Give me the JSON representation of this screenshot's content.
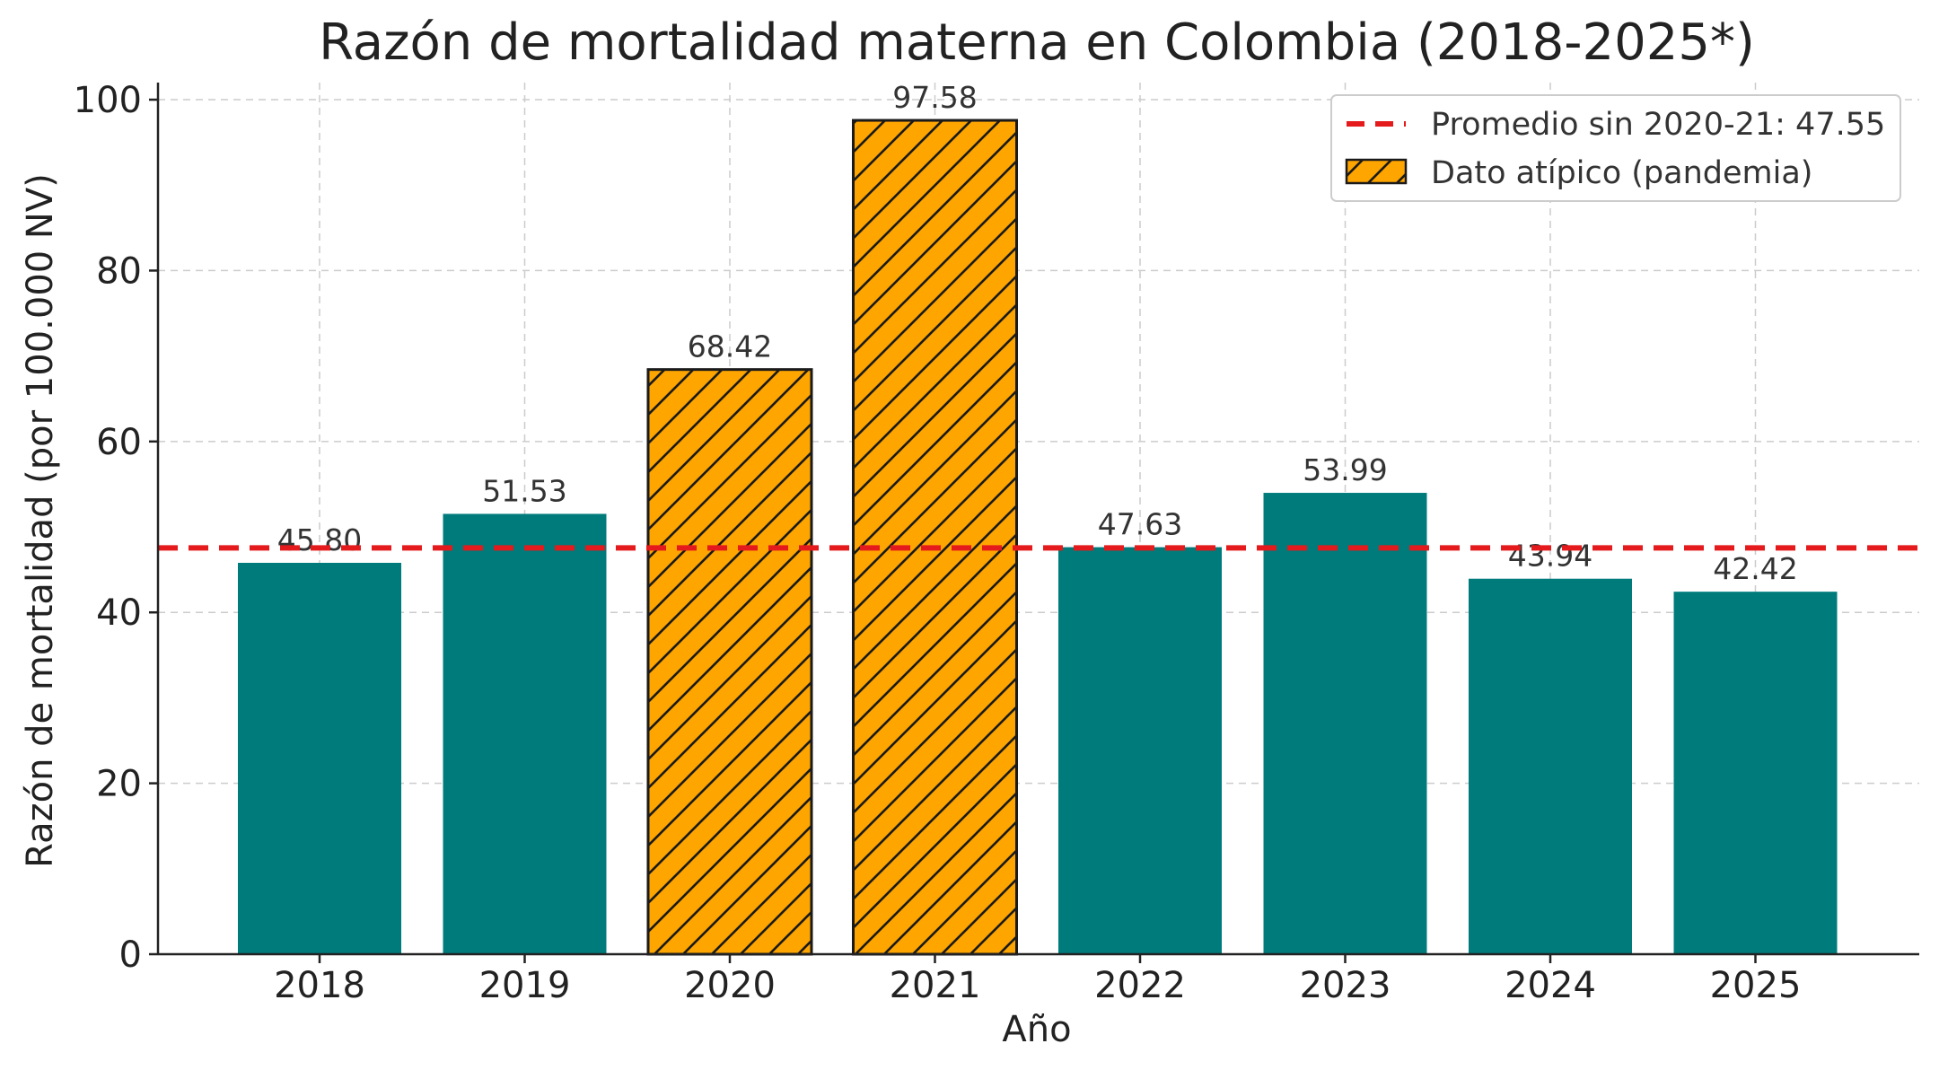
{
  "chart_data": {
    "type": "bar",
    "title": "Razón de mortalidad materna en Colombia (2018-2025*)",
    "xlabel": "Año",
    "ylabel": "Razón de mortalidad (por 100.000 NV)",
    "categories": [
      "2018",
      "2019",
      "2020",
      "2021",
      "2022",
      "2023",
      "2024",
      "2025"
    ],
    "values": [
      45.8,
      51.53,
      68.42,
      97.58,
      47.63,
      53.99,
      43.94,
      42.42
    ],
    "value_labels": [
      "45.80",
      "51.53",
      "68.42",
      "97.58",
      "47.63",
      "53.99",
      "43.94",
      "42.42"
    ],
    "outliers": [
      "2020",
      "2021"
    ],
    "ylim": [
      0,
      102
    ],
    "yticks": [
      0,
      20,
      40,
      60,
      80,
      100
    ],
    "grid": true,
    "reference_line": {
      "value": 47.55,
      "label": "Promedio sin 2020-21: 47.55",
      "color": "#e41a1c"
    },
    "legend": {
      "placement": "top-right",
      "entries": [
        "Promedio sin 2020-21: 47.55",
        "Dato atípico (pandemia)"
      ]
    },
    "colors": {
      "normal": "#007b7b",
      "outlier": "#ffa500",
      "hatch": "#1a1a1a"
    }
  }
}
